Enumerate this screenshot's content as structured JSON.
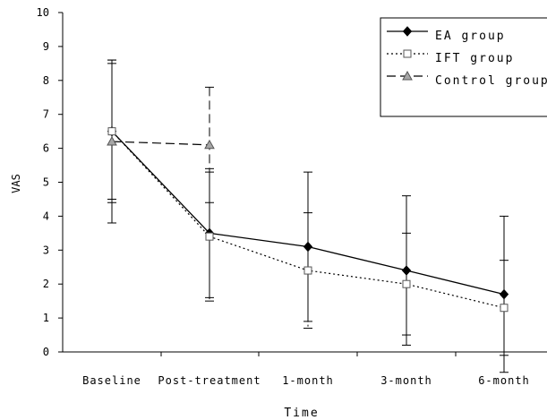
{
  "chart_data": {
    "type": "line",
    "title": "",
    "xlabel": "Time",
    "ylabel": "VAS",
    "ylim": [
      0,
      10
    ],
    "yticks": [
      0,
      1,
      2,
      3,
      4,
      5,
      6,
      7,
      8,
      9,
      10
    ],
    "categories": [
      "Baseline",
      "Post-treatment",
      "1-month",
      "3-month",
      "6-month"
    ],
    "legend_position": "top-right",
    "grid": false,
    "series": [
      {
        "name": "EA group",
        "style": "solid",
        "marker": "diamond-filled",
        "color": "#000000",
        "values": [
          6.5,
          3.5,
          3.1,
          2.4,
          1.7
        ],
        "error_low": [
          3.8,
          1.6,
          0.9,
          0.2,
          -0.6
        ],
        "error_high": [
          8.6,
          5.4,
          5.3,
          4.6,
          4.0
        ]
      },
      {
        "name": "IFT group",
        "style": "dotted",
        "marker": "square-open",
        "color": "#000000",
        "values": [
          6.5,
          3.4,
          2.4,
          2.0,
          1.3
        ],
        "error_low": [
          4.5,
          1.5,
          0.7,
          0.5,
          -0.1
        ],
        "error_high": [
          8.5,
          5.3,
          4.1,
          3.5,
          2.7
        ]
      },
      {
        "name": "Control group",
        "style": "dashed",
        "marker": "triangle-gray",
        "color": "#000000",
        "values": [
          6.2,
          6.1,
          null,
          null,
          null
        ],
        "error_low": [
          4.4,
          4.4,
          null,
          null,
          null
        ],
        "error_high": [
          8.6,
          7.8,
          null,
          null,
          null
        ]
      }
    ]
  }
}
